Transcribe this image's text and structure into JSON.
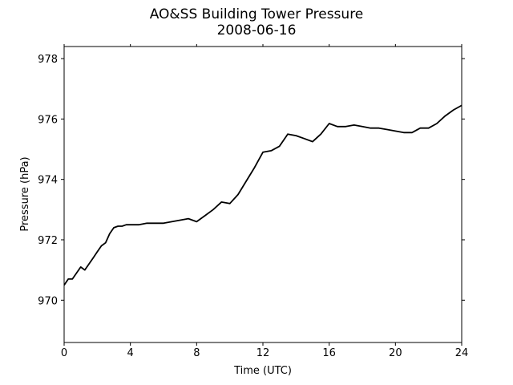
{
  "chart_data": {
    "type": "line",
    "title": "AO&SS Building Tower Pressure",
    "subtitle": "2008-06-16",
    "xlabel": "Time (UTC)",
    "ylabel": "Pressure (hPa)",
    "xlim": [
      0,
      24
    ],
    "ylim": [
      968.6,
      978.4
    ],
    "xticks": [
      0,
      4,
      8,
      12,
      16,
      20,
      24
    ],
    "yticks": [
      970,
      972,
      974,
      976,
      978
    ],
    "grid": false,
    "line_color": "#000000",
    "series": [
      {
        "x": [
          0,
          0.25,
          0.5,
          0.75,
          1.0,
          1.25,
          1.5,
          1.75,
          2.0,
          2.25,
          2.5,
          2.75,
          3.0,
          3.25,
          3.5,
          3.75,
          4.0,
          4.5,
          5.0,
          5.5,
          6.0,
          6.5,
          7.0,
          7.5,
          8.0,
          8.25,
          8.5,
          9.0,
          9.5,
          10.0,
          10.5,
          11.0,
          11.5,
          12.0,
          12.5,
          13.0,
          13.5,
          14.0,
          14.5,
          15.0,
          15.5,
          16.0,
          16.5,
          17.0,
          17.5,
          18.0,
          18.5,
          19.0,
          19.5,
          20.0,
          20.5,
          21.0,
          21.5,
          22.0,
          22.5,
          23.0,
          23.5,
          24.0
        ],
        "values": [
          970.5,
          970.7,
          970.7,
          970.9,
          971.1,
          971.0,
          971.2,
          971.4,
          971.6,
          971.8,
          971.9,
          972.2,
          972.4,
          972.45,
          972.45,
          972.5,
          972.5,
          972.5,
          972.55,
          972.55,
          972.55,
          972.6,
          972.65,
          972.7,
          972.6,
          972.7,
          972.8,
          973.0,
          973.25,
          973.2,
          973.5,
          973.95,
          974.4,
          974.9,
          974.95,
          975.1,
          975.5,
          975.45,
          975.35,
          975.25,
          975.5,
          975.85,
          975.75,
          975.75,
          975.8,
          975.75,
          975.7,
          975.7,
          975.65,
          975.6,
          975.55,
          975.55,
          975.7,
          975.7,
          975.85,
          976.1,
          976.3,
          976.45
        ]
      }
    ]
  }
}
